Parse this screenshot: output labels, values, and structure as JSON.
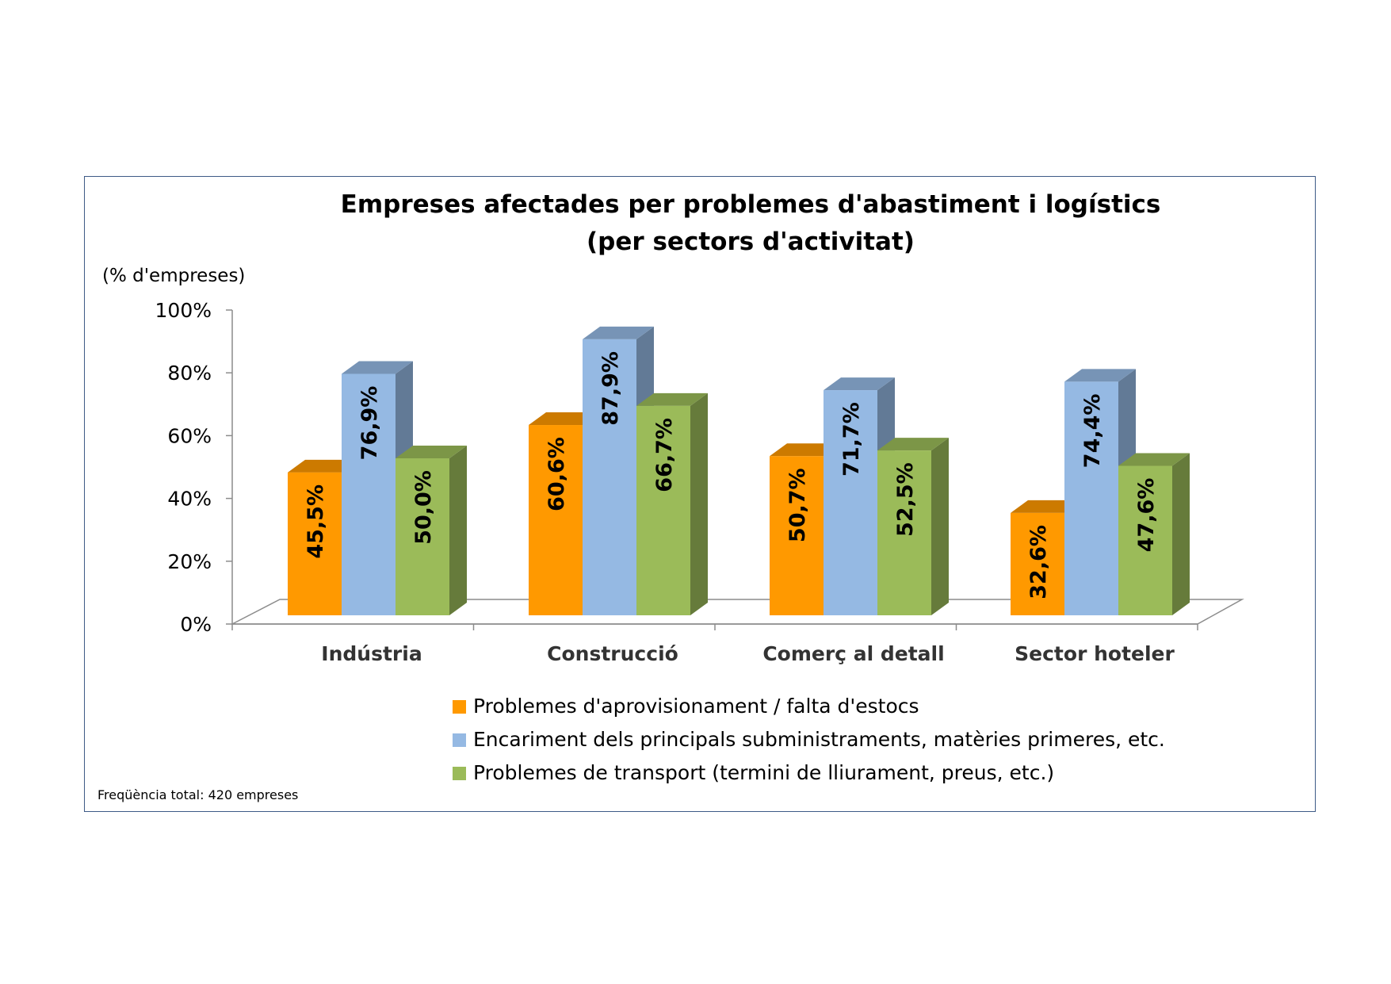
{
  "chart_data": {
    "type": "bar",
    "title": "Empreses afectades per problemes d'abastiment i logístics",
    "subtitle": "(per sectors d'activitat)",
    "ylabel": "(% d'empreses)",
    "xlabel": "",
    "ylim": [
      0,
      100
    ],
    "y_ticks": [
      "0%",
      "20%",
      "40%",
      "60%",
      "80%",
      "100%"
    ],
    "categories": [
      "Indústria",
      "Construcció",
      "Comerç al detall",
      "Sector hoteler"
    ],
    "series": [
      {
        "name": "Problemes d'aprovisionament / falta d'estocs",
        "color": "#FF9900",
        "values": [
          45.5,
          60.6,
          50.7,
          32.6
        ],
        "labels": [
          "45,5%",
          "60,6%",
          "50,7%",
          "32,6%"
        ]
      },
      {
        "name": "Encariment dels principals subministraments, matèries primeres, etc.",
        "color": "#95B9E3",
        "values": [
          76.9,
          87.9,
          71.7,
          74.4
        ],
        "labels": [
          "76,9%",
          "87,9%",
          "71,7%",
          "74,4%"
        ]
      },
      {
        "name": "Problemes de transport (termini de lliurament, preus, etc.)",
        "color": "#9BBB59",
        "values": [
          50.0,
          66.7,
          52.5,
          47.6
        ],
        "labels": [
          "50,0%",
          "66,7%",
          "52,5%",
          "47,6%"
        ]
      }
    ],
    "style": "3d-clustered-column",
    "legend_position": "bottom",
    "grid": false
  },
  "footnote": "Freqüència total: 420 empreses"
}
